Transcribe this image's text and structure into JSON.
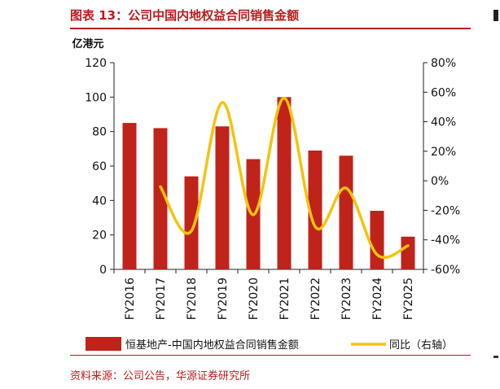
{
  "figure_title": "图表 13：公司中国内地权益合同销售金额",
  "source_note": "资料来源：公司公告，华源证券研究所",
  "colors": {
    "bar": "#c0231a",
    "line": "#f2c40f",
    "accent": "#b81c1c",
    "axis": "#222222"
  },
  "chart_data": {
    "type": "bar",
    "categories": [
      "FY2016",
      "FY2017",
      "FY2018",
      "FY2019",
      "FY2020",
      "FY2021",
      "FY2022",
      "FY2023",
      "FY2024",
      "FY2025"
    ],
    "series": [
      {
        "name": "恒基地产-中国内地权益合同销售金额",
        "type": "bar",
        "axis": "left",
        "values": [
          85,
          82,
          54,
          83,
          64,
          100,
          69,
          66,
          34,
          19
        ]
      },
      {
        "name": "同比（右轴）",
        "type": "line",
        "axis": "right",
        "smooth": true,
        "values": [
          null,
          -4,
          -34,
          53,
          -23,
          56,
          -31,
          -5,
          -50,
          -44
        ]
      }
    ],
    "y_unit": "亿港元",
    "ylim": [
      0,
      120
    ],
    "yticks": [
      "0",
      "20",
      "40",
      "60",
      "80",
      "100",
      "120"
    ],
    "y2lim": [
      -60,
      80
    ],
    "y2ticks": [
      "-60%",
      "-40%",
      "-20%",
      "0%",
      "20%",
      "40%",
      "60%",
      "80%"
    ],
    "legend": {
      "position": "bottom",
      "items": [
        "恒基地产-中国内地权益合同销售金额",
        "同比（右轴）"
      ]
    },
    "grid": false
  }
}
